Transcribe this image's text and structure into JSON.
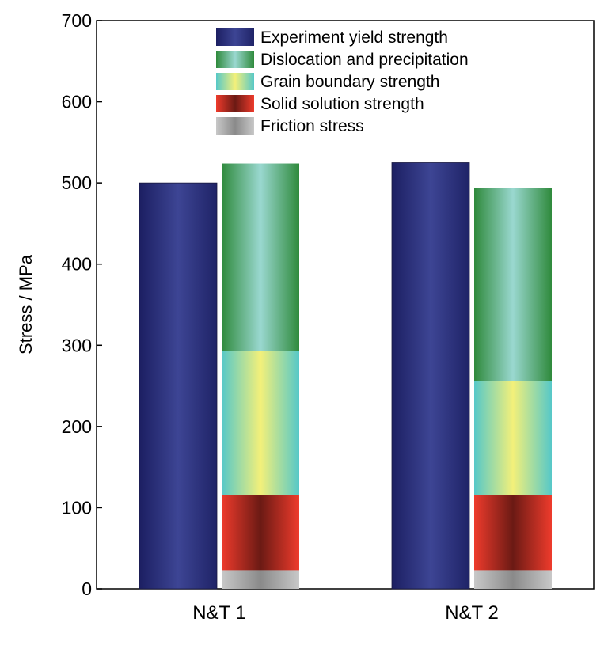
{
  "chart_data": {
    "type": "bar",
    "ylabel": "Stress / MPa",
    "xlabel": "",
    "ylim": [
      0,
      700
    ],
    "yticks": [
      0,
      100,
      200,
      300,
      400,
      500,
      600,
      700
    ],
    "categories": [
      "N&T 1",
      "N&T 2"
    ],
    "grid": false,
    "legend_position": "top-right",
    "series": [
      {
        "name": "Experiment yield strength",
        "stacked": false,
        "values": [
          500,
          525
        ],
        "color": "#2e3384"
      },
      {
        "name": "Friction stress",
        "stacked": true,
        "values": [
          23,
          23
        ],
        "color": "#a9a9a9"
      },
      {
        "name": "Solid solution strength",
        "stacked": true,
        "values": [
          93,
          93
        ],
        "color": "#d93a2a"
      },
      {
        "name": "Grain boundary strength",
        "stacked": true,
        "values": [
          177,
          140
        ],
        "color": "#e6e878"
      },
      {
        "name": "Dislocation and precipitation",
        "stacked": true,
        "values": [
          231,
          238
        ],
        "color": "#6cc0b4"
      }
    ],
    "legend_order": [
      "Experiment yield strength",
      "Dislocation and precipitation",
      "Grain boundary strength",
      "Solid solution strength",
      "Friction stress"
    ]
  }
}
